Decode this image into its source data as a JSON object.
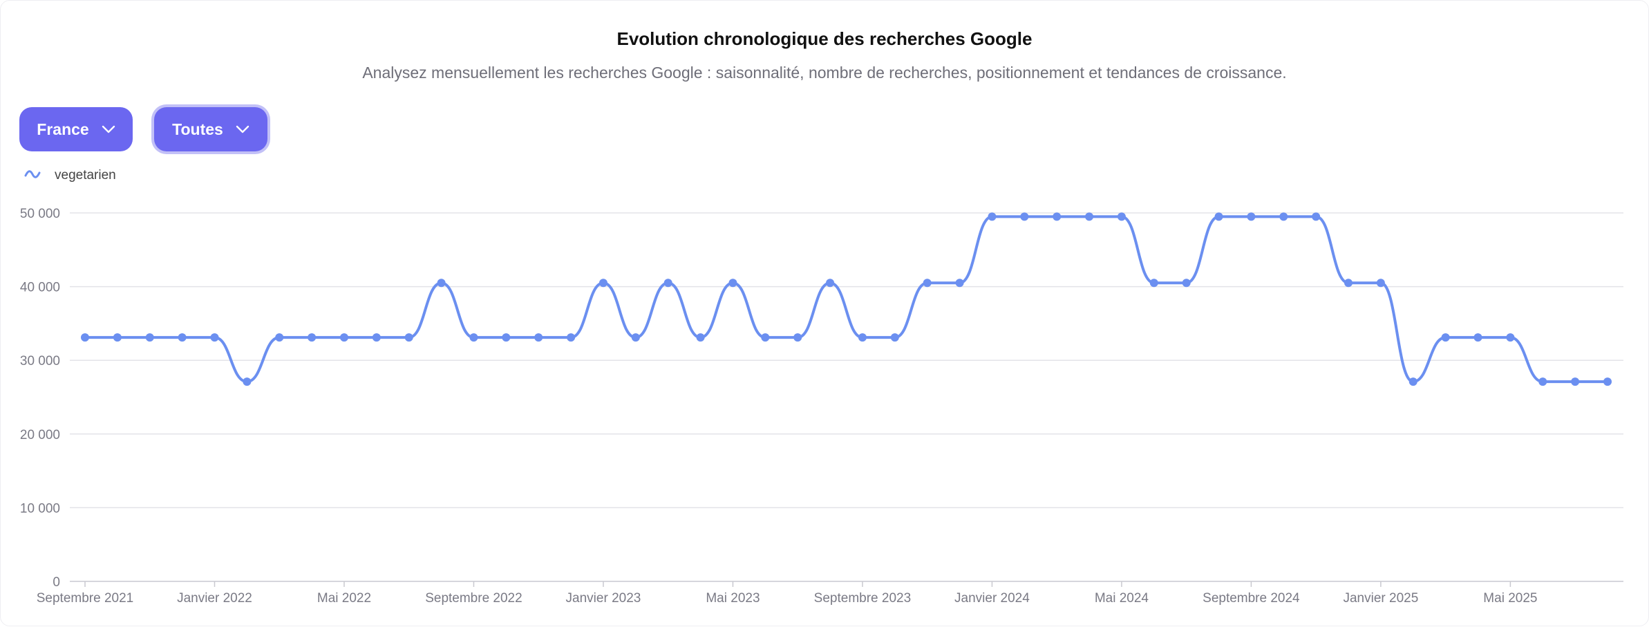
{
  "header": {
    "title": "Evolution chronologique des recherches Google",
    "subtitle": "Analysez mensuellement les recherches Google : saisonnalité, nombre de recherches, positionnement et tendances de croissance."
  },
  "filters": {
    "country_label": "France",
    "scope_label": "Toutes"
  },
  "colors": {
    "accent": "#6b67f0",
    "series": "#6b8ff0"
  },
  "chart_data": {
    "type": "line",
    "xlabel": "",
    "ylabel": "",
    "ylim": [
      0,
      50000
    ],
    "yticks": [
      {
        "value": 0,
        "label": "0"
      },
      {
        "value": 10000,
        "label": "10 000"
      },
      {
        "value": 20000,
        "label": "20 000"
      },
      {
        "value": 30000,
        "label": "30 000"
      },
      {
        "value": 40000,
        "label": "40 000"
      },
      {
        "value": 50000,
        "label": "50 000"
      }
    ],
    "x": [
      "2021-09",
      "2021-10",
      "2021-11",
      "2021-12",
      "2022-01",
      "2022-02",
      "2022-03",
      "2022-04",
      "2022-05",
      "2022-06",
      "2022-07",
      "2022-08",
      "2022-09",
      "2022-10",
      "2022-11",
      "2022-12",
      "2023-01",
      "2023-02",
      "2023-03",
      "2023-04",
      "2023-05",
      "2023-06",
      "2023-07",
      "2023-08",
      "2023-09",
      "2023-10",
      "2023-11",
      "2023-12",
      "2024-01",
      "2024-02",
      "2024-03",
      "2024-04",
      "2024-05",
      "2024-06",
      "2024-07",
      "2024-08",
      "2024-09",
      "2024-10",
      "2024-11",
      "2024-12",
      "2025-01",
      "2025-02",
      "2025-03",
      "2025-04",
      "2025-05",
      "2025-06",
      "2025-07",
      "2025-08"
    ],
    "xticks": [
      {
        "index": 0,
        "label": "Septembre 2021"
      },
      {
        "index": 4,
        "label": "Janvier 2022"
      },
      {
        "index": 8,
        "label": "Mai 2022"
      },
      {
        "index": 12,
        "label": "Septembre 2022"
      },
      {
        "index": 16,
        "label": "Janvier 2023"
      },
      {
        "index": 20,
        "label": "Mai 2023"
      },
      {
        "index": 24,
        "label": "Septembre 2023"
      },
      {
        "index": 28,
        "label": "Janvier 2024"
      },
      {
        "index": 32,
        "label": "Mai 2024"
      },
      {
        "index": 36,
        "label": "Septembre 2024"
      },
      {
        "index": 40,
        "label": "Janvier 2025"
      },
      {
        "index": 44,
        "label": "Mai 2025"
      }
    ],
    "series": [
      {
        "name": "vegetarien",
        "values": [
          33100,
          33100,
          33100,
          33100,
          33100,
          27100,
          33100,
          33100,
          33100,
          33100,
          33100,
          40500,
          33100,
          33100,
          33100,
          33100,
          40500,
          33100,
          40500,
          33100,
          40500,
          33100,
          33100,
          40500,
          33100,
          33100,
          40500,
          40500,
          49500,
          49500,
          49500,
          49500,
          49500,
          40500,
          40500,
          49500,
          49500,
          49500,
          49500,
          40500,
          40500,
          27100,
          33100,
          33100,
          33100,
          27100,
          27100,
          27100
        ]
      }
    ],
    "grid": true,
    "legend": "top-left"
  }
}
